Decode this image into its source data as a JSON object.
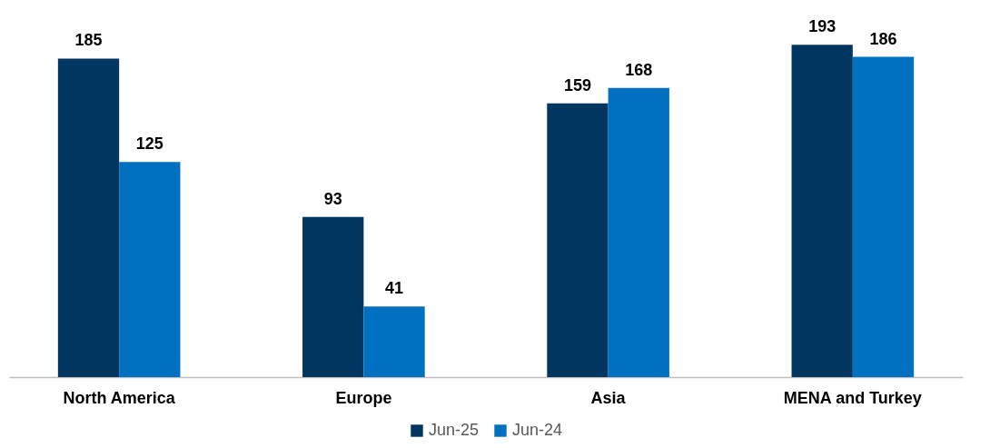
{
  "chart_data": {
    "type": "bar",
    "categories": [
      "North America",
      "Europe",
      "Asia",
      "MENA and Turkey"
    ],
    "series": [
      {
        "name": "Jun-25",
        "color": "#003660",
        "values": [
          185,
          93,
          159,
          193
        ]
      },
      {
        "name": "Jun-24",
        "color": "#0070c0",
        "values": [
          125,
          41,
          168,
          186
        ]
      }
    ],
    "data_labels": true,
    "legend": "bottom",
    "grid": false
  }
}
